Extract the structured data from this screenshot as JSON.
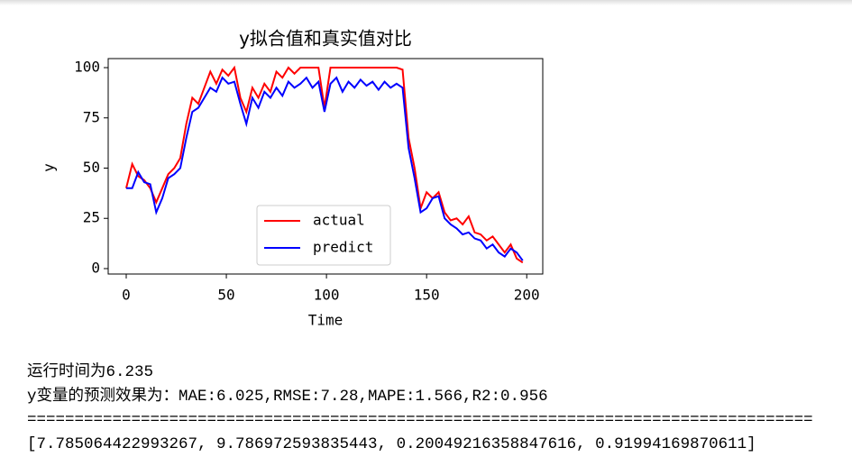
{
  "chart_data": {
    "type": "line",
    "title": "y拟合值和真实值对比",
    "xlabel": "Time",
    "ylabel": "y",
    "x": [
      0,
      3,
      6,
      9,
      12,
      15,
      18,
      21,
      24,
      27,
      30,
      33,
      36,
      39,
      42,
      45,
      48,
      51,
      54,
      57,
      60,
      63,
      66,
      69,
      72,
      75,
      78,
      81,
      84,
      87,
      90,
      93,
      96,
      99,
      102,
      105,
      108,
      111,
      114,
      117,
      120,
      123,
      126,
      129,
      132,
      135,
      138,
      141,
      144,
      147,
      150,
      153,
      156,
      159,
      162,
      165,
      168,
      171,
      174,
      177,
      180,
      183,
      186,
      189,
      192,
      195,
      198
    ],
    "series": [
      {
        "name": "actual",
        "color": "#ff0000",
        "values": [
          40,
          52,
          46,
          44,
          40,
          33,
          40,
          47,
          50,
          55,
          72,
          85,
          82,
          90,
          98,
          92,
          99,
          96,
          100,
          85,
          78,
          90,
          85,
          92,
          88,
          98,
          95,
          100,
          97,
          100,
          100,
          100,
          100,
          80,
          100,
          100,
          100,
          100,
          100,
          100,
          100,
          100,
          100,
          100,
          100,
          100,
          99,
          65,
          50,
          30,
          38,
          35,
          38,
          28,
          24,
          25,
          22,
          26,
          18,
          17,
          14,
          16,
          12,
          8,
          12,
          5,
          3
        ]
      },
      {
        "name": "predict",
        "color": "#0000ff",
        "values": [
          40,
          40,
          48,
          43,
          42,
          28,
          35,
          45,
          47,
          50,
          65,
          78,
          80,
          85,
          90,
          88,
          95,
          92,
          93,
          82,
          72,
          85,
          80,
          88,
          85,
          90,
          86,
          93,
          90,
          92,
          95,
          90,
          93,
          78,
          92,
          95,
          88,
          93,
          90,
          94,
          91,
          93,
          89,
          93,
          90,
          92,
          90,
          60,
          45,
          28,
          30,
          35,
          36,
          25,
          22,
          20,
          17,
          18,
          15,
          14,
          10,
          12,
          8,
          6,
          10,
          8,
          4
        ]
      }
    ],
    "xlim": [
      -9,
      208
    ],
    "ylim": [
      -2.7,
      104.5
    ],
    "xticks": [
      0,
      50,
      100,
      150,
      200
    ],
    "yticks": [
      0,
      25,
      50,
      75,
      100
    ],
    "grid": false,
    "legend": "lower center"
  },
  "output": {
    "lines": [
      "运行时间为6.235",
      "y变量的预测效果为：MAE:6.025,RMSE:7.28,MAPE:1.566,R2:0.956",
      "===================================================================================",
      "[7.785064422993267, 9.786972593835443, 0.20049216358847616, 0.91994169870611]"
    ]
  }
}
